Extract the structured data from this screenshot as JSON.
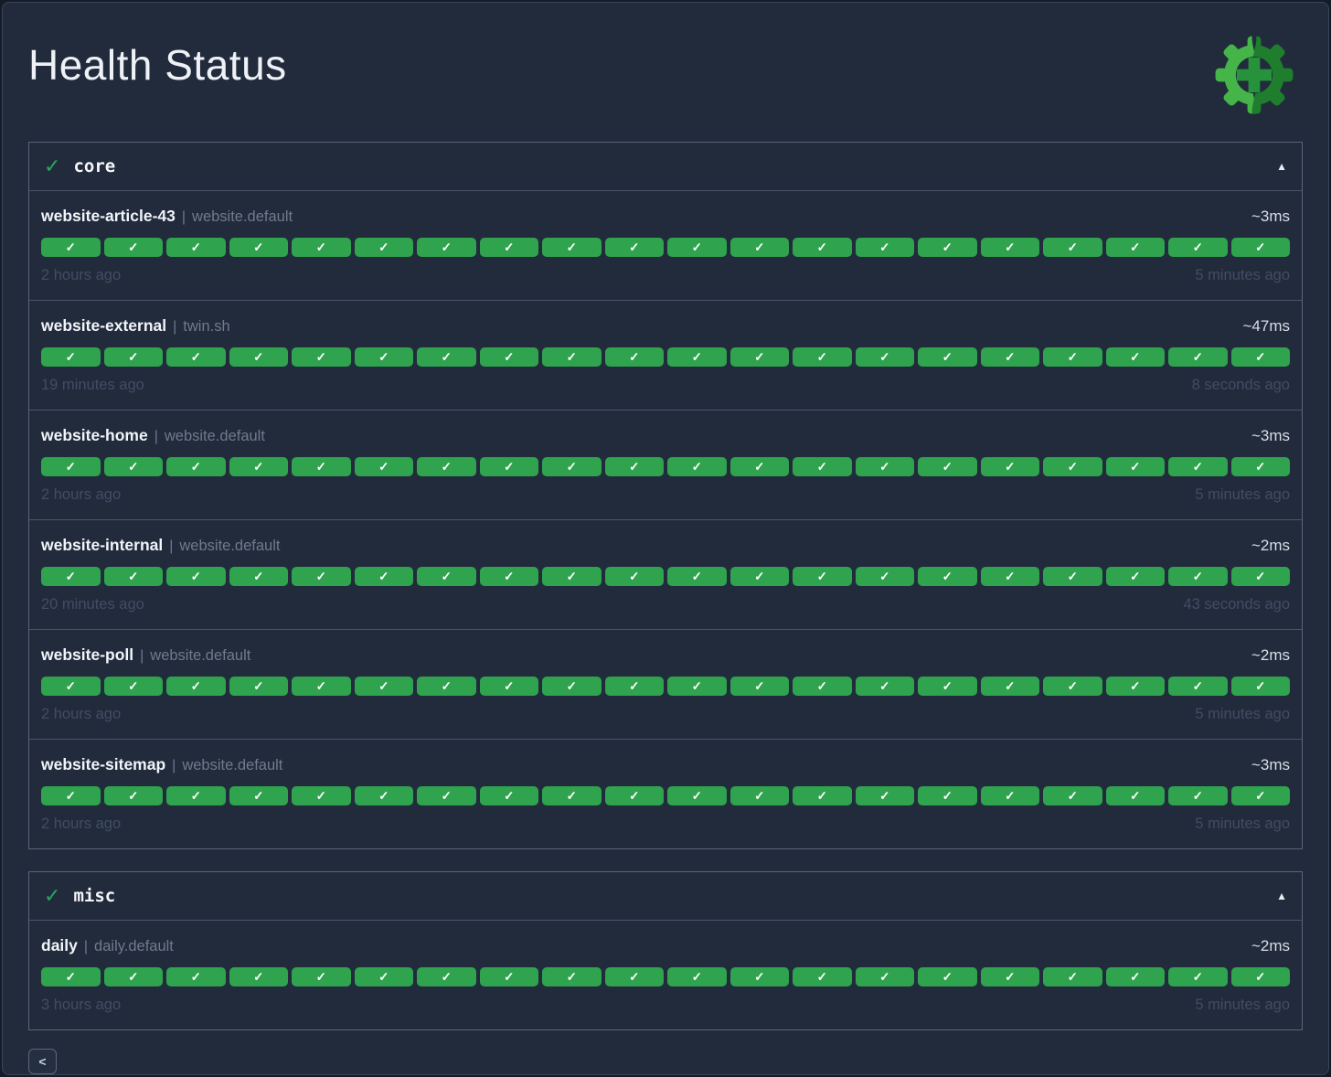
{
  "page": {
    "title": "Health Status",
    "divider": "|",
    "status_icon": "✓",
    "collapse_icon": "▲",
    "prev_label": "<"
  },
  "colors": {
    "badge_success": "#2fa34e",
    "group_check_green": "#2aa55f",
    "logo_light_green": "#45b549",
    "logo_dark_green": "#1f7e2e",
    "logo_plus_green": "#27923c"
  },
  "groups": [
    {
      "name": "core",
      "status": "success",
      "endpoints": [
        {
          "name": "website-article-43",
          "group_label": "website.default",
          "response_time": "~3ms",
          "oldest_timestamp": "2 hours ago",
          "newest_timestamp": "5 minutes ago",
          "results": {
            "count": 20,
            "status": "success"
          }
        },
        {
          "name": "website-external",
          "group_label": "twin.sh",
          "response_time": "~47ms",
          "oldest_timestamp": "19 minutes ago",
          "newest_timestamp": "8 seconds ago",
          "results": {
            "count": 20,
            "status": "success"
          }
        },
        {
          "name": "website-home",
          "group_label": "website.default",
          "response_time": "~3ms",
          "oldest_timestamp": "2 hours ago",
          "newest_timestamp": "5 minutes ago",
          "results": {
            "count": 20,
            "status": "success"
          }
        },
        {
          "name": "website-internal",
          "group_label": "website.default",
          "response_time": "~2ms",
          "oldest_timestamp": "20 minutes ago",
          "newest_timestamp": "43 seconds ago",
          "results": {
            "count": 20,
            "status": "success"
          }
        },
        {
          "name": "website-poll",
          "group_label": "website.default",
          "response_time": "~2ms",
          "oldest_timestamp": "2 hours ago",
          "newest_timestamp": "5 minutes ago",
          "results": {
            "count": 20,
            "status": "success"
          }
        },
        {
          "name": "website-sitemap",
          "group_label": "website.default",
          "response_time": "~3ms",
          "oldest_timestamp": "2 hours ago",
          "newest_timestamp": "5 minutes ago",
          "results": {
            "count": 20,
            "status": "success"
          }
        }
      ]
    },
    {
      "name": "misc",
      "status": "success",
      "endpoints": [
        {
          "name": "daily",
          "group_label": "daily.default",
          "response_time": "~2ms",
          "oldest_timestamp": "3 hours ago",
          "newest_timestamp": "5 minutes ago",
          "results": {
            "count": 20,
            "status": "success"
          }
        }
      ]
    }
  ]
}
